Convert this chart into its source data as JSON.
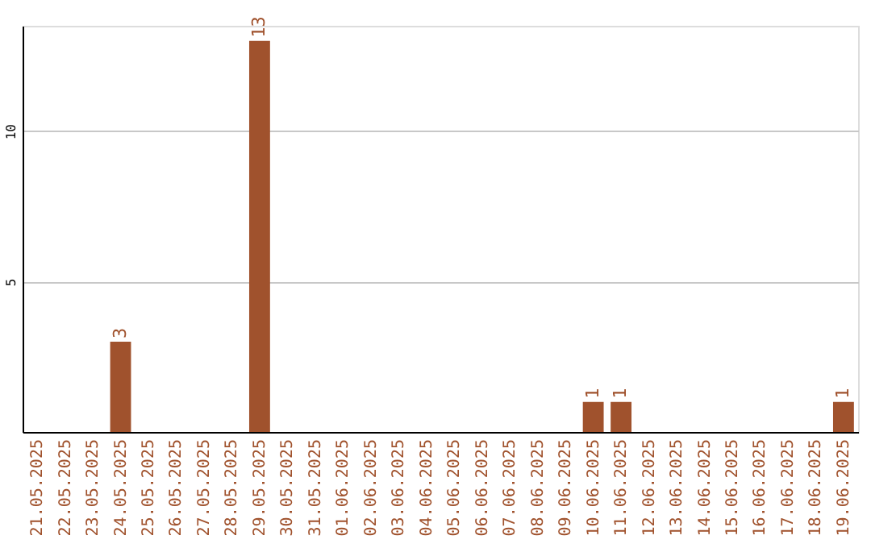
{
  "chart_data": {
    "type": "bar",
    "categories": [
      "21.05.2025",
      "22.05.2025",
      "23.05.2025",
      "24.05.2025",
      "25.05.2025",
      "26.05.2025",
      "27.05.2025",
      "28.05.2025",
      "29.05.2025",
      "30.05.2025",
      "31.05.2025",
      "01.06.2025",
      "02.06.2025",
      "03.06.2025",
      "04.06.2025",
      "05.06.2025",
      "06.06.2025",
      "07.06.2025",
      "08.06.2025",
      "09.06.2025",
      "10.06.2025",
      "11.06.2025",
      "12.06.2025",
      "13.06.2025",
      "14.06.2025",
      "15.06.2025",
      "16.06.2025",
      "17.06.2025",
      "18.06.2025",
      "19.06.2025"
    ],
    "values": [
      0,
      0,
      0,
      3,
      0,
      0,
      0,
      0,
      13,
      0,
      0,
      0,
      0,
      0,
      0,
      0,
      0,
      0,
      0,
      0,
      1,
      1,
      0,
      0,
      0,
      0,
      0,
      0,
      0,
      1
    ],
    "value_labels": [
      null,
      null,
      null,
      "3",
      null,
      null,
      null,
      null,
      "13",
      null,
      null,
      null,
      null,
      null,
      null,
      null,
      null,
      null,
      null,
      null,
      "1",
      "1",
      null,
      null,
      null,
      null,
      null,
      null,
      null,
      "1"
    ],
    "color": "#a0522d",
    "ylim": [
      0,
      13.5
    ],
    "yticks": [
      5,
      10
    ],
    "grid": "y"
  }
}
